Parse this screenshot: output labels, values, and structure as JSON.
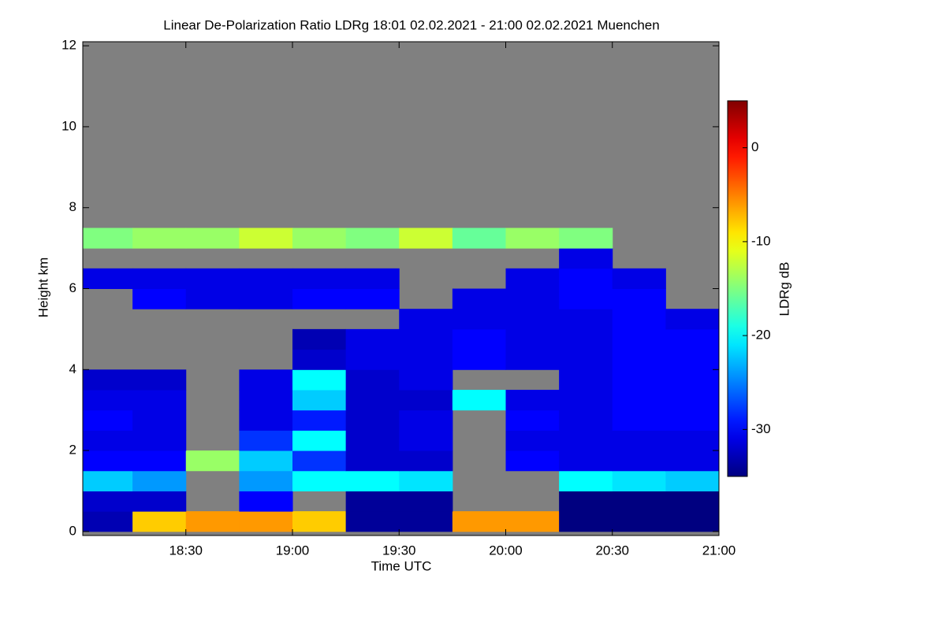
{
  "chart_data": {
    "type": "heatmap",
    "title": "Linear De-Polarization Ratio LDRg   18:01 02.02.2021 - 21:00 02.02.2021 Muenchen",
    "x_label": "Time UTC",
    "y_label": "Height km",
    "xlim": [
      "18:01",
      "21:00"
    ],
    "xticks": [
      "18:30",
      "19:00",
      "19:30",
      "20:00",
      "20:30",
      "21:00"
    ],
    "ylim": [
      -0.1,
      12.1
    ],
    "yticks": [
      0,
      2,
      4,
      6,
      8,
      10,
      12
    ],
    "x_bins": [
      "18:01",
      "18:15",
      "18:30",
      "18:45",
      "19:00",
      "19:15",
      "19:30",
      "19:45",
      "20:00",
      "20:15",
      "20:30",
      "20:45",
      "21:00"
    ],
    "y_bins": [
      0,
      0.5,
      1,
      1.5,
      2,
      2.5,
      3,
      3.5,
      4,
      4.5,
      5,
      5.5,
      6,
      6.5,
      7,
      7.5
    ],
    "values": [
      [
        -33,
        -8,
        -6,
        -6,
        -8,
        -34,
        -34,
        -6,
        -6,
        -35,
        -35,
        -35
      ],
      [
        -32,
        -32,
        null,
        -30,
        null,
        -34,
        -34,
        null,
        null,
        -35,
        -35,
        -35
      ],
      [
        -22,
        -24,
        null,
        -24,
        -20,
        -20,
        -21,
        null,
        null,
        -20,
        -21,
        -22
      ],
      [
        -30,
        -30,
        -14,
        -22,
        -28,
        -32,
        -32,
        null,
        -30,
        -31,
        -31,
        -31
      ],
      [
        -31,
        -31,
        null,
        -28,
        -20,
        -32,
        -31,
        null,
        -31,
        -31,
        -31,
        -31
      ],
      [
        -30,
        -31,
        null,
        -31,
        -29,
        -32,
        -31,
        null,
        -30,
        -31,
        -30,
        -30
      ],
      [
        -31,
        -31,
        null,
        -31,
        -22,
        -32,
        -32,
        -20,
        -31,
        -31,
        -30,
        -30
      ],
      [
        -32,
        -32,
        null,
        -31,
        -20,
        -32,
        -31,
        null,
        null,
        -31,
        -30,
        -30
      ],
      [
        null,
        null,
        null,
        null,
        -32,
        -31,
        -31,
        -30,
        -31,
        -31,
        -30,
        -30
      ],
      [
        null,
        null,
        null,
        null,
        -33,
        -31,
        -31,
        -30,
        -31,
        -31,
        -30,
        -30
      ],
      [
        null,
        null,
        null,
        null,
        null,
        null,
        -31,
        -31,
        -31,
        -31,
        -30,
        -31
      ],
      [
        null,
        -30,
        -31,
        -31,
        -30,
        -30,
        null,
        -31,
        -31,
        -30,
        -30,
        null
      ],
      [
        -31,
        -31,
        -31,
        -31,
        -31,
        -31,
        null,
        null,
        -31,
        -30,
        -31,
        null
      ],
      [
        null,
        null,
        null,
        null,
        null,
        null,
        null,
        null,
        null,
        -31,
        null,
        null
      ],
      [
        -15,
        -14,
        -14,
        -12,
        -14,
        -15,
        -12,
        -16,
        -14,
        -15,
        null,
        null
      ]
    ],
    "colormap": "jet",
    "nan_color": "#808080",
    "colorbar": {
      "label": "LDRg dB",
      "lim": [
        -35,
        5
      ],
      "ticks": [
        0,
        -10,
        -20,
        -30
      ]
    }
  }
}
